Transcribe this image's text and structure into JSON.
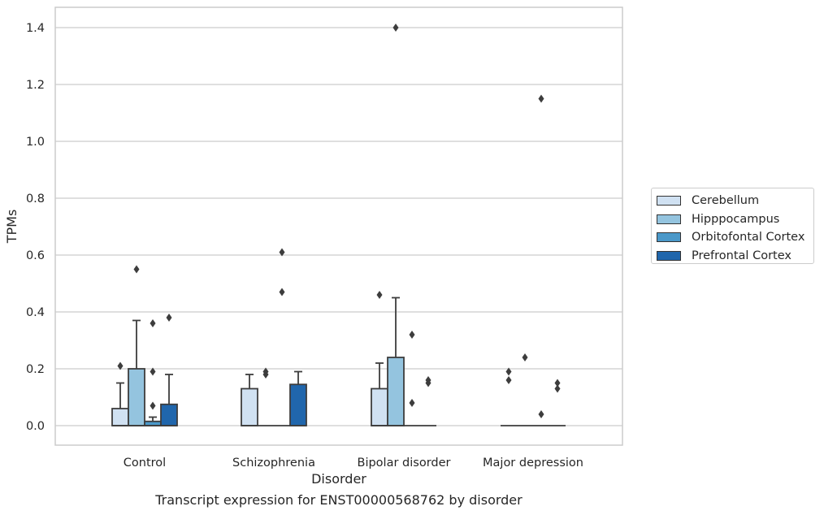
{
  "chart_data": {
    "type": "box",
    "xlabel": "Disorder",
    "ylabel": "TPMs",
    "categories": [
      "Control",
      "Schizophrenia",
      "Bipolar disorder",
      "Major depression"
    ],
    "ylim": [
      -0.07,
      1.47
    ],
    "yticks": [
      "0.0",
      "0.2",
      "0.4",
      "0.6",
      "0.8",
      "1.0",
      "1.2",
      "1.4"
    ],
    "grid": "horizontal",
    "legend_position": "right",
    "series": [
      {
        "name": "Cerebellum",
        "color": "#d0e1f2",
        "boxes": [
          {
            "q1": 0.0,
            "median": 0.0,
            "q3": 0.06,
            "whisker_low": 0.0,
            "whisker_high": 0.15,
            "outliers": [
              0.21
            ]
          },
          {
            "q1": 0.0,
            "median": 0.0,
            "q3": 0.13,
            "whisker_low": 0.0,
            "whisker_high": 0.18,
            "outliers": []
          },
          {
            "q1": 0.0,
            "median": 0.0,
            "q3": 0.13,
            "whisker_low": 0.0,
            "whisker_high": 0.22,
            "outliers": [
              0.46
            ]
          },
          {
            "q1": 0.0,
            "median": 0.0,
            "q3": 0.0,
            "whisker_low": 0.0,
            "whisker_high": 0.0,
            "outliers": [
              0.16,
              0.19
            ]
          }
        ]
      },
      {
        "name": "Hipppocampus",
        "color": "#94c4df",
        "boxes": [
          {
            "q1": 0.0,
            "median": 0.0,
            "q3": 0.2,
            "whisker_low": 0.0,
            "whisker_high": 0.37,
            "outliers": [
              0.55
            ]
          },
          {
            "q1": 0.0,
            "median": 0.0,
            "q3": 0.0,
            "whisker_low": 0.0,
            "whisker_high": 0.0,
            "outliers": [
              0.18,
              0.19
            ]
          },
          {
            "q1": 0.0,
            "median": 0.0,
            "q3": 0.24,
            "whisker_low": 0.0,
            "whisker_high": 0.45,
            "outliers": [
              1.4
            ]
          },
          {
            "q1": 0.0,
            "median": 0.0,
            "q3": 0.0,
            "whisker_low": 0.0,
            "whisker_high": 0.0,
            "outliers": [
              0.24
            ]
          }
        ]
      },
      {
        "name": "Orbitofontal Cortex",
        "color": "#4a98c9",
        "boxes": [
          {
            "q1": 0.0,
            "median": 0.0,
            "q3": 0.015,
            "whisker_low": 0.0,
            "whisker_high": 0.03,
            "outliers": [
              0.07,
              0.19,
              0.36
            ]
          },
          {
            "q1": 0.0,
            "median": 0.0,
            "q3": 0.0,
            "whisker_low": 0.0,
            "whisker_high": 0.0,
            "outliers": [
              0.47,
              0.61
            ]
          },
          {
            "q1": 0.0,
            "median": 0.0,
            "q3": 0.0,
            "whisker_low": 0.0,
            "whisker_high": 0.0,
            "outliers": [
              0.08,
              0.32
            ]
          },
          {
            "q1": 0.0,
            "median": 0.0,
            "q3": 0.0,
            "whisker_low": 0.0,
            "whisker_high": 0.0,
            "outliers": [
              0.04,
              1.15
            ]
          }
        ]
      },
      {
        "name": "Prefrontal Cortex",
        "color": "#2066ac",
        "boxes": [
          {
            "q1": 0.0,
            "median": 0.0,
            "q3": 0.075,
            "whisker_low": 0.0,
            "whisker_high": 0.18,
            "outliers": [
              0.38
            ]
          },
          {
            "q1": 0.0,
            "median": 0.0,
            "q3": 0.145,
            "whisker_low": 0.0,
            "whisker_high": 0.19,
            "outliers": []
          },
          {
            "q1": 0.0,
            "median": 0.0,
            "q3": 0.0,
            "whisker_low": 0.0,
            "whisker_high": 0.0,
            "outliers": [
              0.15,
              0.16
            ]
          },
          {
            "q1": 0.0,
            "median": 0.0,
            "q3": 0.0,
            "whisker_low": 0.0,
            "whisker_high": 0.0,
            "outliers": [
              0.13,
              0.15
            ]
          }
        ]
      }
    ]
  },
  "caption": "Transcript expression for ENST00000568762 by disorder"
}
